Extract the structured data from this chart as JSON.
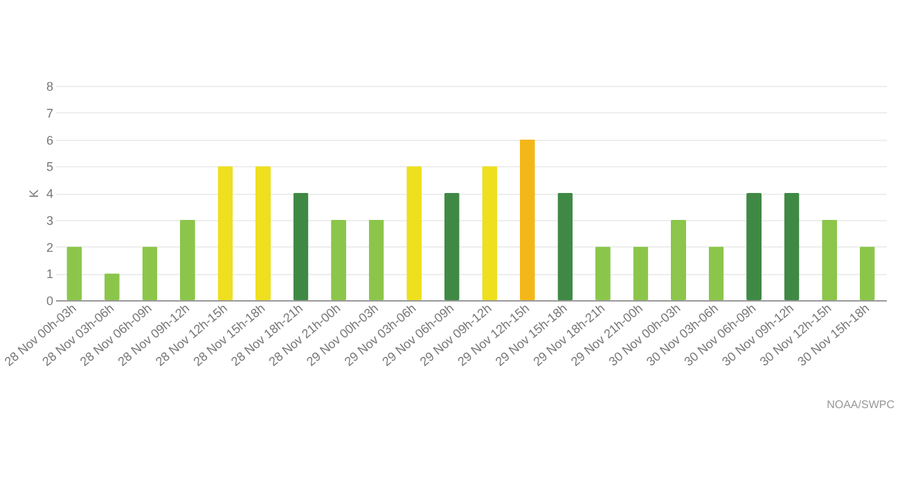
{
  "chart_data": {
    "type": "bar",
    "ylabel": "K",
    "categories": [
      "28 Nov 00h-03h",
      "28 Nov 03h-06h",
      "28 Nov 06h-09h",
      "28 Nov 09h-12h",
      "28 Nov 12h-15h",
      "28 Nov 15h-18h",
      "28 Nov 18h-21h",
      "28 Nov 21h-00h",
      "29 Nov 00h-03h",
      "29 Nov 03h-06h",
      "29 Nov 06h-09h",
      "29 Nov 09h-12h",
      "29 Nov 12h-15h",
      "29 Nov 15h-18h",
      "29 Nov 18h-21h",
      "29 Nov 21h-00h",
      "30 Nov 00h-03h",
      "30 Nov 03h-06h",
      "30 Nov 06h-09h",
      "30 Nov 09h-12h",
      "30 Nov 12h-15h",
      "30 Nov 15h-18h"
    ],
    "values": [
      2,
      1,
      2,
      3,
      5,
      5,
      4,
      3,
      3,
      5,
      4,
      5,
      6,
      4,
      2,
      2,
      3,
      2,
      4,
      4,
      3,
      2
    ],
    "colors": [
      "#8bc64b",
      "#8bc64b",
      "#8bc64b",
      "#8bc64b",
      "#eedf1f",
      "#eedf1f",
      "#3f8945",
      "#8bc64b",
      "#8bc64b",
      "#eedf1f",
      "#3f8945",
      "#eedf1f",
      "#f4b719",
      "#3f8945",
      "#8bc64b",
      "#8bc64b",
      "#8bc64b",
      "#8bc64b",
      "#3f8945",
      "#3f8945",
      "#8bc64b",
      "#8bc64b"
    ],
    "ylim": [
      0,
      8
    ],
    "yticks": [
      0,
      1,
      2,
      3,
      4,
      5,
      6,
      7,
      8
    ],
    "grid": "y",
    "annotations": [
      "NOAA/SWPC"
    ]
  }
}
